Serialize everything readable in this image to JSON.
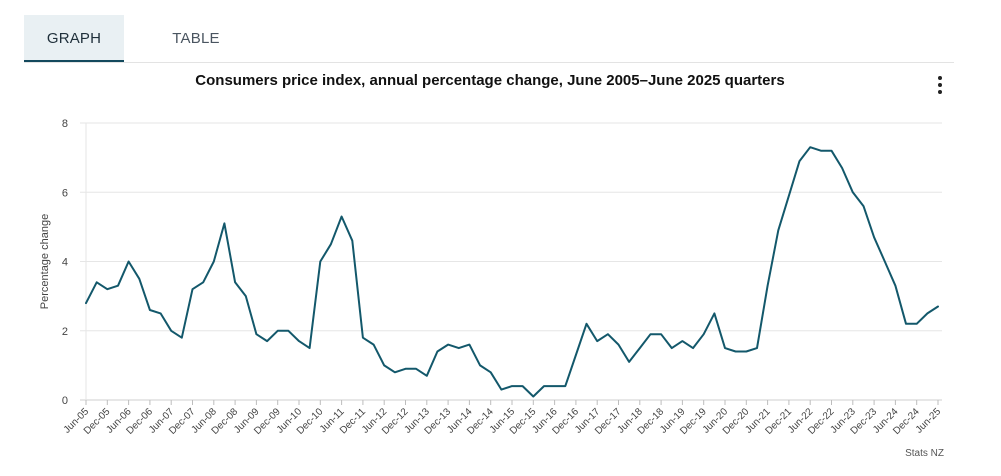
{
  "tabs": [
    {
      "label": "GRAPH",
      "active": true
    },
    {
      "label": "TABLE",
      "active": false
    }
  ],
  "menu_icon": "vertical-dots-icon",
  "credit": "Stats NZ",
  "colors": {
    "line": "#13586b",
    "grid": "#e6e6e6",
    "active_tab_bg": "#e9f0f3",
    "active_tab_border": "#13495d"
  },
  "chart_data": {
    "type": "line",
    "title": "Consumers price index, annual percentage change, June 2005–June 2025 quarters",
    "xlabel": "",
    "ylabel": "Percentage change",
    "ylim": [
      0,
      8
    ],
    "yticks": [
      0,
      2,
      4,
      6,
      8
    ],
    "grid": true,
    "x": [
      "Jun-05",
      "Sep-05",
      "Dec-05",
      "Mar-06",
      "Jun-06",
      "Sep-06",
      "Dec-06",
      "Mar-07",
      "Jun-07",
      "Sep-07",
      "Dec-07",
      "Mar-08",
      "Jun-08",
      "Sep-08",
      "Dec-08",
      "Mar-09",
      "Jun-09",
      "Sep-09",
      "Dec-09",
      "Mar-10",
      "Jun-10",
      "Sep-10",
      "Dec-10",
      "Mar-11",
      "Jun-11",
      "Sep-11",
      "Dec-11",
      "Mar-12",
      "Jun-12",
      "Sep-12",
      "Dec-12",
      "Mar-13",
      "Jun-13",
      "Sep-13",
      "Dec-13",
      "Mar-14",
      "Jun-14",
      "Sep-14",
      "Dec-14",
      "Mar-15",
      "Jun-15",
      "Sep-15",
      "Dec-15",
      "Mar-16",
      "Jun-16",
      "Sep-16",
      "Dec-16",
      "Mar-17",
      "Jun-17",
      "Sep-17",
      "Dec-17",
      "Mar-18",
      "Jun-18",
      "Sep-18",
      "Dec-18",
      "Mar-19",
      "Jun-19",
      "Sep-19",
      "Dec-19",
      "Mar-20",
      "Jun-20",
      "Sep-20",
      "Dec-20",
      "Mar-21",
      "Jun-21",
      "Sep-21",
      "Dec-21",
      "Mar-22",
      "Jun-22",
      "Sep-22",
      "Dec-22",
      "Mar-23",
      "Jun-23",
      "Sep-23",
      "Dec-23",
      "Mar-24",
      "Jun-24",
      "Sep-24",
      "Dec-24",
      "Mar-25",
      "Jun-25"
    ],
    "xtick_labels": [
      "Jun-05",
      "Dec-05",
      "Jun-06",
      "Dec-06",
      "Jun-07",
      "Dec-07",
      "Jun-08",
      "Dec-08",
      "Jun-09",
      "Dec-09",
      "Jun-10",
      "Dec-10",
      "Jun-11",
      "Dec-11",
      "Jun-12",
      "Dec-12",
      "Jun-13",
      "Dec-13",
      "Jun-14",
      "Dec-14",
      "Jun-15",
      "Dec-15",
      "Jun-16",
      "Dec-16",
      "Jun-17",
      "Dec-17",
      "Jun-18",
      "Dec-18",
      "Jun-19",
      "Dec-19",
      "Jun-20",
      "Dec-20",
      "Jun-21",
      "Dec-21",
      "Jun-22",
      "Dec-22",
      "Jun-23",
      "Dec-23",
      "Jun-24",
      "Dec-24",
      "Jun-25"
    ],
    "series": [
      {
        "name": "",
        "values": [
          2.8,
          3.4,
          3.2,
          3.3,
          4.0,
          3.5,
          2.6,
          2.5,
          2.0,
          1.8,
          3.2,
          3.4,
          4.0,
          5.1,
          3.4,
          3.0,
          1.9,
          1.7,
          2.0,
          2.0,
          1.7,
          1.5,
          4.0,
          4.5,
          5.3,
          4.6,
          1.8,
          1.6,
          1.0,
          0.8,
          0.9,
          0.9,
          0.7,
          1.4,
          1.6,
          1.5,
          1.6,
          1.0,
          0.8,
          0.3,
          0.4,
          0.4,
          0.1,
          0.4,
          0.4,
          0.4,
          1.3,
          2.2,
          1.7,
          1.9,
          1.6,
          1.1,
          1.5,
          1.9,
          1.9,
          1.5,
          1.7,
          1.5,
          1.9,
          2.5,
          1.5,
          1.4,
          1.4,
          1.5,
          3.3,
          4.9,
          5.9,
          6.9,
          7.3,
          7.2,
          7.2,
          6.7,
          6.0,
          5.6,
          4.7,
          4.0,
          3.3,
          2.2,
          2.2,
          2.5,
          2.7
        ]
      }
    ]
  }
}
